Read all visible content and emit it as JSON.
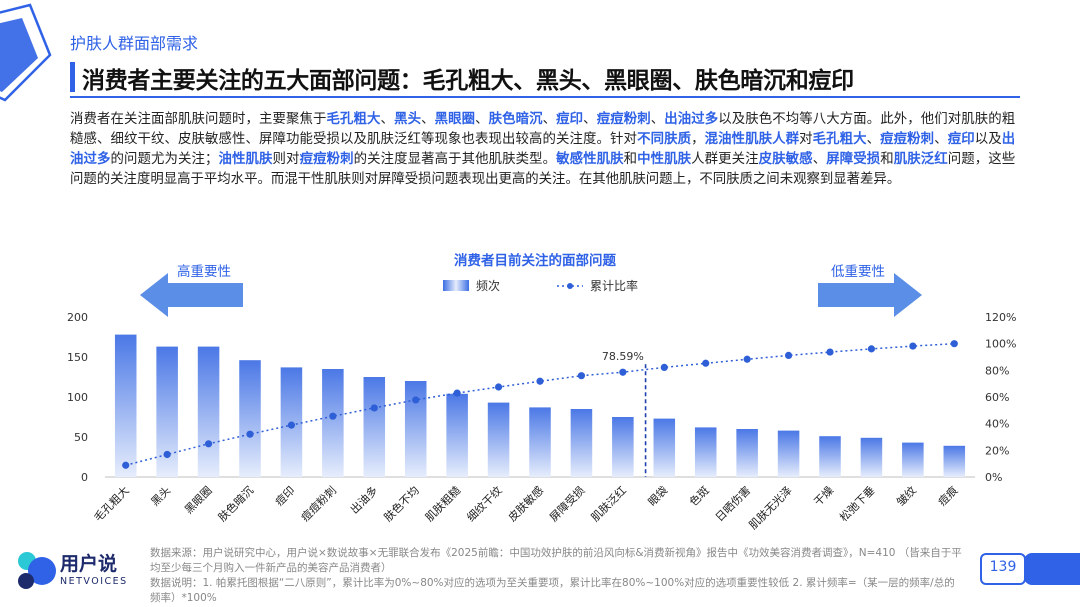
{
  "header": {
    "section": "护肤人群面部需求",
    "title": "消费者主要关注的五大面部问题：毛孔粗大、黑头、黑眼圈、肤色暗沉和痘印"
  },
  "body_segments": [
    {
      "t": "消费者在关注面部肌肤问题时，主要聚焦于",
      "h": false
    },
    {
      "t": "毛孔粗大",
      "h": true
    },
    {
      "t": "、",
      "h": false
    },
    {
      "t": "黑头",
      "h": true
    },
    {
      "t": "、",
      "h": false
    },
    {
      "t": "黑眼圈",
      "h": true
    },
    {
      "t": "、",
      "h": false
    },
    {
      "t": "肤色暗沉",
      "h": true
    },
    {
      "t": "、",
      "h": false
    },
    {
      "t": "痘印",
      "h": true
    },
    {
      "t": "、",
      "h": false
    },
    {
      "t": "痘痘粉刺",
      "h": true
    },
    {
      "t": "、",
      "h": false
    },
    {
      "t": "出油过多",
      "h": true
    },
    {
      "t": "以及肤色不均等八大方面。此外，他们对肌肤的粗糙感、细纹干纹、皮肤敏感性、屏障功能受损以及肌肤泛红等现象也表现出较高的关注度。针对",
      "h": false
    },
    {
      "t": "不同肤质",
      "h": true
    },
    {
      "t": "，",
      "h": false
    },
    {
      "t": "混油性肌肤人群",
      "h": true
    },
    {
      "t": "对",
      "h": false
    },
    {
      "t": "毛孔粗大",
      "h": true
    },
    {
      "t": "、",
      "h": false
    },
    {
      "t": "痘痘粉刺",
      "h": true
    },
    {
      "t": "、",
      "h": false
    },
    {
      "t": "痘印",
      "h": true
    },
    {
      "t": "以及",
      "h": false
    },
    {
      "t": "出油过多",
      "h": true
    },
    {
      "t": "的问题尤为关注；",
      "h": false
    },
    {
      "t": "油性肌肤",
      "h": true
    },
    {
      "t": "则对",
      "h": false
    },
    {
      "t": "痘痘粉刺",
      "h": true
    },
    {
      "t": "的关注度显著高于其他肌肤类型。",
      "h": false
    },
    {
      "t": "敏感性肌肤",
      "h": true
    },
    {
      "t": "和",
      "h": false
    },
    {
      "t": "中性肌肤",
      "h": true
    },
    {
      "t": "人群更关注",
      "h": false
    },
    {
      "t": "皮肤敏感",
      "h": true
    },
    {
      "t": "、",
      "h": false
    },
    {
      "t": "屏障受损",
      "h": true
    },
    {
      "t": "和",
      "h": false
    },
    {
      "t": "肌肤泛红",
      "h": true
    },
    {
      "t": "问题，这些问题的关注度明显高于平均水平。而混干性肌肤则对屏障受损问题表现出更高的关注。在其他肌肤问题上，不同肤质之间未观察到显著差异。",
      "h": false
    }
  ],
  "chart_data": {
    "type": "bar",
    "title": "消费者目前关注的面部问题",
    "categories": [
      "毛孔粗大",
      "黑头",
      "黑眼圈",
      "肤色暗沉",
      "痘印",
      "痘痘粉刺",
      "出油多",
      "肤色不均",
      "肌肤粗糙",
      "细纹干纹",
      "皮肤敏感",
      "屏障受损",
      "肌肤泛红",
      "眼袋",
      "色斑",
      "日晒伤害",
      "肌肤无光泽",
      "干燥",
      "松弛下垂",
      "皱纹",
      "痘痕"
    ],
    "series": [
      {
        "name": "频次",
        "type": "bar",
        "axis": "left",
        "values": [
          178,
          163,
          163,
          146,
          137,
          135,
          125,
          120,
          104,
          93,
          87,
          85,
          75,
          73,
          62,
          60,
          58,
          51,
          49,
          43,
          39
        ]
      },
      {
        "name": "累计比率",
        "type": "line",
        "axis": "right",
        "unit": "%",
        "values": [
          8.8,
          16.9,
          24.9,
          32.1,
          38.9,
          45.6,
          51.8,
          57.8,
          62.9,
          67.5,
          71.8,
          76.0,
          78.59,
          82.2,
          85.3,
          88.3,
          91.2,
          93.7,
          96.1,
          98.2,
          100
        ]
      }
    ],
    "ylim_left": [
      0,
      200
    ],
    "left_ticks": [
      0,
      50,
      100,
      150,
      200
    ],
    "ylim_right": [
      0,
      120
    ],
    "right_ticks": [
      "0%",
      "20%",
      "40%",
      "60%",
      "80%",
      "100%",
      "120%"
    ],
    "annotation": {
      "label": "78.59%",
      "after_index": 12
    },
    "arrow_left_label": "高重要性",
    "arrow_right_label": "低重要性",
    "legend_position": "top-center"
  },
  "colors": {
    "accent": "#2f62e6",
    "bar": "#5b86e8",
    "line": "#2f5fd6"
  },
  "footer": {
    "line1": "数据来源：用户说研究中心，用户说×数说故事×无罪联合发布《2025前瞻：中国功效护肤的前沿风向标&消费新视角》报告中《功效美容消费者调查》，N=410 （皆来自于平均至少每三个月购入一件新产品的美容产品消费者）",
    "line2": "数据说明：1. 帕累托图根据“二八原则”，累计比率为0%~80%对应的选项为至关重要项，累计比率在80%~100%对应的选项重要性较低 2. 累计频率=（某一层的频率/总的频率）*100%"
  },
  "logo": {
    "cn": "用户说",
    "en": "NETVOICES"
  },
  "page_number": "139"
}
